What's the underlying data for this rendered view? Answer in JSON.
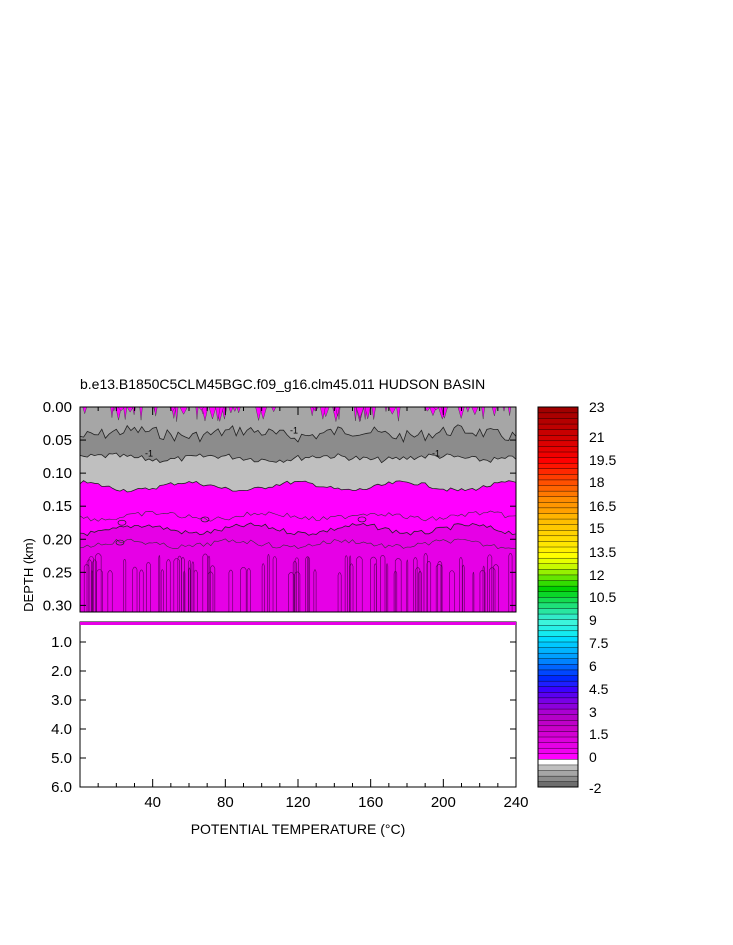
{
  "chart_data": {
    "type": "heatmap",
    "title": "b.e13.B1850C5CLM45BGC.f09_g16.clm45.011 HUDSON BASIN",
    "xlabel": "POTENTIAL TEMPERATURE (°C)",
    "ylabel": "DEPTH (km)",
    "x_ticks": [
      "40",
      "80",
      "120",
      "160",
      "200",
      "240"
    ],
    "x_tick_values": [
      40,
      80,
      120,
      160,
      200,
      240
    ],
    "xlim": [
      0,
      240
    ],
    "upper_panel": {
      "ylim": [
        0.0,
        0.31
      ],
      "y_ticks": [
        "0.00",
        "0.05",
        "0.10",
        "0.15",
        "0.20",
        "0.25",
        "0.30"
      ],
      "y_tick_values": [
        0.0,
        0.05,
        0.1,
        0.15,
        0.2,
        0.25,
        0.3
      ],
      "bands": [
        {
          "depth_top": 0.0,
          "depth_bottom": 0.03,
          "level": 0,
          "color": "#ff00ff"
        },
        {
          "depth_top": 0.0,
          "depth_bottom": 0.04,
          "level": -1.5,
          "color": "#a6a6a6"
        },
        {
          "depth_top": 0.04,
          "depth_bottom": 0.077,
          "level": -2,
          "color": "#8c8c8c"
        },
        {
          "depth_top": 0.077,
          "depth_bottom": 0.12,
          "level": -0.5,
          "color": "#bfbfbf"
        },
        {
          "depth_top": 0.12,
          "depth_bottom": 0.185,
          "level": 0,
          "color": "#ff00ff"
        },
        {
          "depth_top": 0.185,
          "depth_bottom": 0.31,
          "level": 0.5,
          "color": "#e600e6"
        }
      ],
      "contour_labels": [
        "-1",
        "-1",
        "-1"
      ]
    },
    "lower_panel": {
      "ylim": [
        0.31,
        6.0
      ],
      "y_ticks": [
        "1.0",
        "2.0",
        "3.0",
        "4.0",
        "5.0",
        "6.0"
      ],
      "y_tick_values": [
        1.0,
        2.0,
        3.0,
        4.0,
        5.0,
        6.0
      ]
    },
    "colorbar": {
      "labels": [
        "23",
        "21",
        "19.5",
        "18",
        "16.5",
        "15",
        "13.5",
        "12",
        "10.5",
        "9",
        "7.5",
        "6",
        "4.5",
        "3",
        "1.5",
        "0",
        "-2"
      ],
      "levels": [
        -2,
        -1.5,
        -1,
        -0.5,
        0,
        0.25,
        0.5,
        0.75,
        1,
        1.25,
        1.5,
        1.75,
        2,
        2.25,
        2.5,
        2.75,
        3,
        3.25,
        3.5,
        3.75,
        4,
        4.25,
        4.5,
        4.75,
        5,
        5.25,
        5.5,
        5.75,
        6,
        6.25,
        6.5,
        6.75,
        7,
        7.25,
        7.5,
        7.75,
        8,
        8.25,
        8.5,
        8.75,
        9,
        9.25,
        9.5,
        9.75,
        10,
        10.25,
        10.5,
        10.75,
        11,
        11.25,
        11.5,
        11.75,
        12,
        12.25,
        12.5,
        12.75,
        13,
        13.25,
        13.5,
        13.75,
        14,
        14.25,
        14.5,
        14.75,
        15,
        15.25,
        15.5,
        15.75,
        16,
        16.25,
        16.5,
        16.75,
        17,
        17.25,
        17.5,
        17.75,
        18,
        18.25,
        18.5,
        18.75,
        19,
        19.25,
        19.5,
        19.75,
        20,
        20.25,
        20.5,
        20.75,
        21,
        21.25,
        21.5,
        21.75,
        22,
        22.25,
        22.5,
        22.75,
        23
      ],
      "colors": [
        "#6e6e6e",
        "#8c8c8c",
        "#a6a6a6",
        "#bfbfbf",
        "#ffffff",
        "#ff00ff",
        "#f000f0",
        "#e600e6",
        "#dc00dc",
        "#d200d2",
        "#c800c8",
        "#be00c8",
        "#b400c8",
        "#aa00d2",
        "#8c00dc",
        "#7800e6",
        "#5a00f0",
        "#3c00ff",
        "#1e1eff",
        "#0028ff",
        "#0046ff",
        "#0064ff",
        "#0082ff",
        "#00a0ff",
        "#00b4ff",
        "#00c8ff",
        "#00dcff",
        "#14ebf0",
        "#28f0e6",
        "#3cf5dc",
        "#32ebc8",
        "#28e6a0",
        "#1ee178",
        "#14dc50",
        "#0ad728",
        "#00d200",
        "#32dc00",
        "#64e600",
        "#96f000",
        "#c8fa00",
        "#e6ff00",
        "#ffff00",
        "#fff000",
        "#ffe600",
        "#ffdc00",
        "#ffd200",
        "#ffc800",
        "#ffbe00",
        "#ffb400",
        "#ffa000",
        "#ff9600",
        "#ff8c00",
        "#ff7800",
        "#ff6400",
        "#ff5000",
        "#ff3c00",
        "#ff2800",
        "#ff1400",
        "#ff0000",
        "#f00000",
        "#e60000",
        "#dc0000",
        "#d20000",
        "#c80000",
        "#be0000",
        "#b40000",
        "#aa0000",
        "#a00000"
      ]
    }
  }
}
